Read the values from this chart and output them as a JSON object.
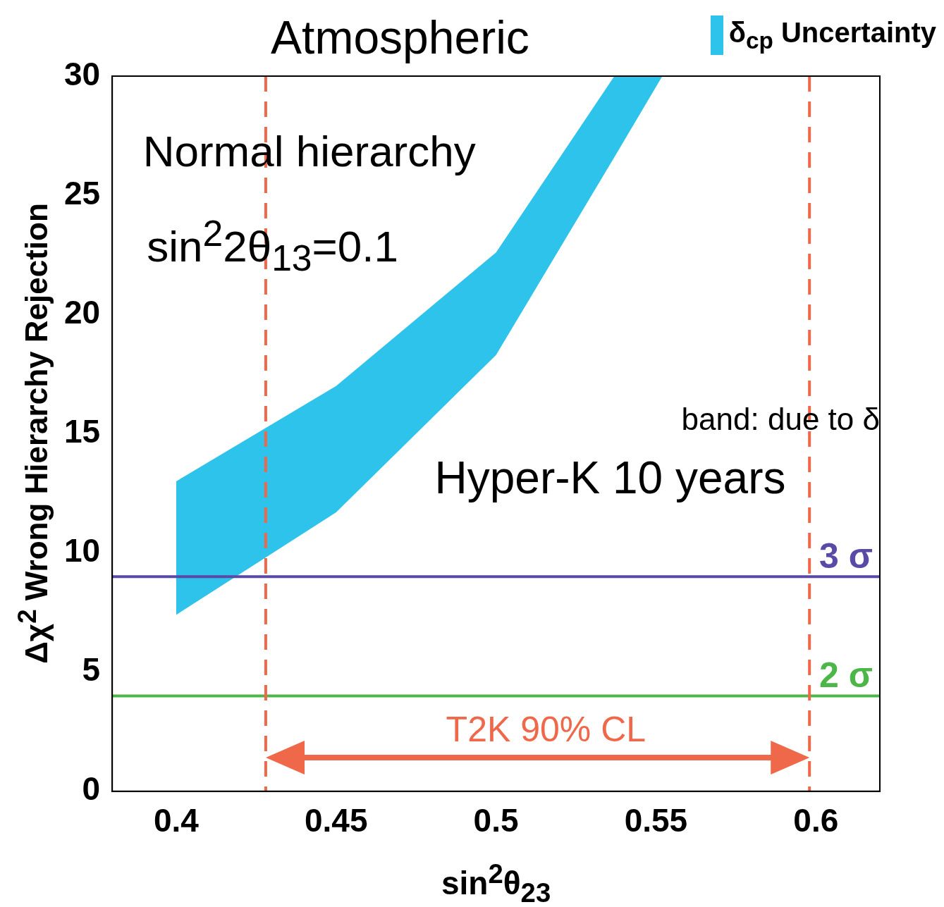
{
  "chart_data": {
    "type": "area",
    "title": "Atmospheric",
    "xlabel": "sin$^{2}$θ$_{23}$",
    "ylabel": "Δχ$^{2}$ Wrong Hierarchy Rejection",
    "xlim": [
      0.38,
      0.62
    ],
    "xticks": [
      0.4,
      0.45,
      0.5,
      0.55,
      0.6
    ],
    "ylim": [
      0,
      30
    ],
    "yticks": [
      0,
      5,
      10,
      15,
      20,
      25,
      30
    ],
    "grid": false,
    "legend": "top right",
    "x": [
      0.4,
      0.45,
      0.5,
      0.537,
      0.552
    ],
    "series": [
      {
        "name": "δ$_{cp}$ Uncertainty",
        "color": "#2ec3ea",
        "values": [
          null,
          null,
          null,
          null,
          null
        ],
        "lower": [
          7.4,
          11.7,
          18.3,
          26.6,
          30
        ],
        "upper": [
          13,
          17,
          22.6,
          30,
          30
        ]
      }
    ],
    "ref_lines": [
      {
        "axis": "y",
        "value": 9,
        "label": "3 σ",
        "color": "#5a4aa8",
        "line_style": "solid"
      },
      {
        "axis": "y",
        "value": 4,
        "label": "2 σ",
        "color": "#4cb748",
        "line_style": "solid"
      },
      {
        "axis": "x",
        "value": 0.428,
        "label": null,
        "color": "#f0684a",
        "line_style": "dashed"
      },
      {
        "axis": "x",
        "value": 0.598,
        "label": null,
        "color": "#f0684a",
        "line_style": "dashed"
      }
    ],
    "annotations": [
      "Normal hierarchy",
      "sin$^{2}$2θ$_{13}$=0.1",
      "band: due to δ",
      "Hyper-K 10 years",
      "T2K 90% CL"
    ]
  }
}
